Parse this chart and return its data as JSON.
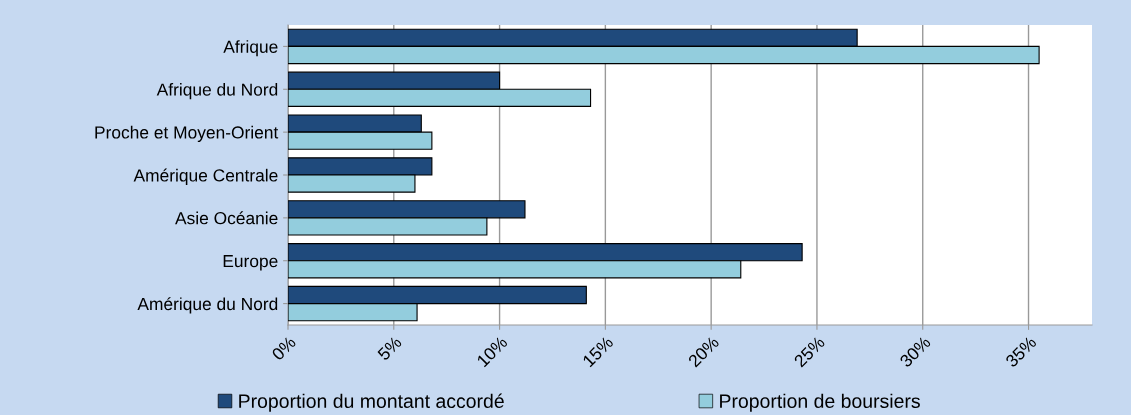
{
  "chart_data": {
    "type": "bar",
    "orientation": "horizontal",
    "categories": [
      "Afrique",
      "Afrique du Nord",
      "Proche et Moyen-Orient",
      "Amérique Centrale",
      "Asie Océanie",
      "Europe",
      "Amérique du Nord"
    ],
    "series": [
      {
        "name": "Proportion du montant accordé",
        "color": "#1f4a7c",
        "values": [
          26.9,
          10.0,
          6.3,
          6.8,
          11.2,
          24.3,
          14.1
        ]
      },
      {
        "name": "Proportion de boursiers",
        "color": "#93cddd",
        "values": [
          35.5,
          14.3,
          6.8,
          6.0,
          9.4,
          21.4,
          6.1
        ]
      }
    ],
    "xlim": [
      0,
      38
    ],
    "xticks": [
      {
        "value": 0,
        "label": "0%"
      },
      {
        "value": 5,
        "label": "5%"
      },
      {
        "value": 10,
        "label": "10%"
      },
      {
        "value": 15,
        "label": "15%"
      },
      {
        "value": 20,
        "label": "20%"
      },
      {
        "value": 25,
        "label": "25%"
      },
      {
        "value": 30,
        "label": "30%"
      },
      {
        "value": 35,
        "label": "35%"
      }
    ],
    "grid": "x",
    "legend": "bottom"
  }
}
